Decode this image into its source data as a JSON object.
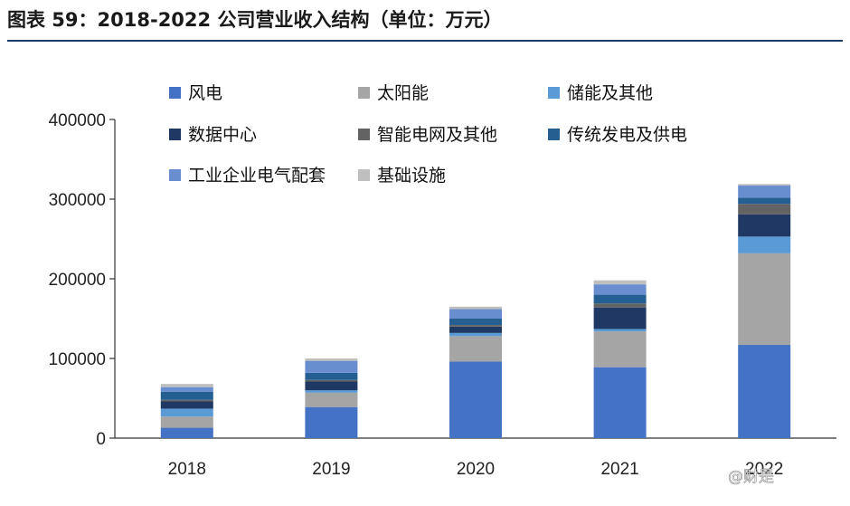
{
  "title": "图表 59：2018-2022 公司营业收入结构（单位：万元）",
  "watermark": "@财是",
  "chart_data": {
    "type": "bar",
    "stacked": true,
    "categories": [
      "2018",
      "2019",
      "2020",
      "2021",
      "2022"
    ],
    "ylim": [
      0,
      400000
    ],
    "yticks": [
      "0",
      "100000",
      "200000",
      "300000",
      "400000"
    ],
    "grid": false,
    "legend_position": "top",
    "series": [
      {
        "name": "风电",
        "color": "#4472c4",
        "values": [
          13000,
          39000,
          96000,
          89000,
          117000
        ]
      },
      {
        "name": "太阳能",
        "color": "#a5a5a5",
        "values": [
          14000,
          18000,
          32000,
          45000,
          115000
        ]
      },
      {
        "name": "储能及其他",
        "color": "#5b9bd5",
        "values": [
          10000,
          3000,
          4000,
          3000,
          21000
        ]
      },
      {
        "name": "数据中心",
        "color": "#203864",
        "values": [
          9000,
          11000,
          8000,
          27000,
          28000
        ]
      },
      {
        "name": "智能电网及其他",
        "color": "#636363",
        "values": [
          2000,
          2000,
          2000,
          5000,
          13000
        ]
      },
      {
        "name": "传统发电及供电",
        "color": "#255e91",
        "values": [
          10000,
          9000,
          8000,
          11000,
          8000
        ]
      },
      {
        "name": "工业企业电气配套",
        "color": "#698ed0",
        "values": [
          6000,
          15000,
          12000,
          13000,
          15000
        ]
      },
      {
        "name": "基础设施",
        "color": "#bfbfbf",
        "values": [
          4000,
          3000,
          3000,
          5000,
          2000
        ]
      }
    ]
  }
}
